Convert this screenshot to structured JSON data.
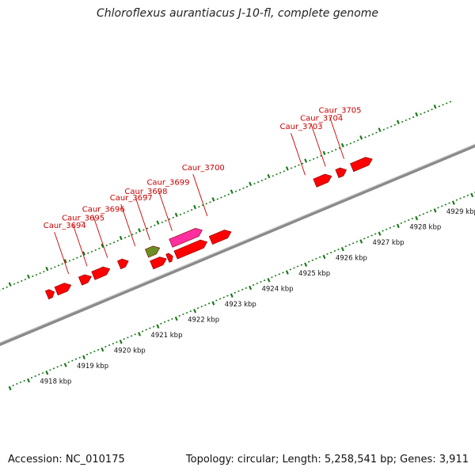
{
  "title": "Chloroflexus aurantiacus J-10-fl, complete genome",
  "footer": {
    "accession": "Accession: NC_010175",
    "summary": "Topology: circular; Length: 5,258,541 bp; Genes: 3,911"
  },
  "colors": {
    "gene": "#ff0000",
    "gene_dark": "#b00000",
    "gene_pink": "#ff2fa0",
    "gene_olive": "#6b8e23",
    "genome_line": "#8a8a8a",
    "tick": "#1a7a1a",
    "label": "#cc0000"
  },
  "genes": [
    {
      "id": "g1",
      "strand": "inner",
      "start": 4918.75,
      "end": 4918.95,
      "color": "#ff0000"
    },
    {
      "id": "g2",
      "strand": "inner",
      "start": 4919.0,
      "end": 4919.4,
      "color": "#ff0000"
    },
    {
      "id": "g3",
      "strand": "inner",
      "start": 4919.65,
      "end": 4919.95,
      "color": "#ff0000"
    },
    {
      "id": "g4",
      "strand": "inner",
      "start": 4920.0,
      "end": 4920.45,
      "color": "#ff0000"
    },
    {
      "id": "g5",
      "strand": "inner",
      "start": 4920.7,
      "end": 4920.95,
      "color": "#ff0000"
    },
    {
      "id": "g6",
      "strand": "inner",
      "start": 4921.45,
      "end": 4921.8,
      "color": "#6b8e23"
    },
    {
      "id": "g7",
      "strand": "middle",
      "start": 4921.45,
      "end": 4921.85,
      "color": "#ff0000"
    },
    {
      "id": "g8",
      "strand": "middle",
      "start": 4921.88,
      "end": 4922.02,
      "color": "#ff0000"
    },
    {
      "id": "g9",
      "strand": "inner",
      "start": 4922.1,
      "end": 4922.95,
      "color": "#ff2fa0"
    },
    {
      "id": "g10",
      "strand": "middle",
      "start": 4922.1,
      "end": 4922.95,
      "color": "#ff0000"
    },
    {
      "id": "g11",
      "strand": "middle",
      "start": 4923.05,
      "end": 4923.6,
      "color": "#ff0000"
    },
    {
      "id": "g12",
      "strand": "outer",
      "start": 4926.0,
      "end": 4926.45,
      "color": "#ff0000"
    },
    {
      "id": "g13",
      "strand": "outer",
      "start": 4926.6,
      "end": 4926.85,
      "color": "#ff0000"
    },
    {
      "id": "g14",
      "strand": "outer",
      "start": 4927.0,
      "end": 4927.55,
      "color": "#ff0000"
    }
  ],
  "gene_labels": [
    {
      "text": "Caur_3694",
      "pos": 4919.45
    },
    {
      "text": "Caur_3695",
      "pos": 4919.95
    },
    {
      "text": "Caur_3696",
      "pos": 4920.5
    },
    {
      "text": "Caur_3697",
      "pos": 4921.25
    },
    {
      "text": "Caur_3698",
      "pos": 4921.65
    },
    {
      "text": "Caur_3699",
      "pos": 4922.25
    },
    {
      "text": "Caur_3700",
      "pos": 4923.2
    },
    {
      "text": "Caur_3703",
      "pos": 4925.85
    },
    {
      "text": "Caur_3704",
      "pos": 4926.4
    },
    {
      "text": "Caur_3705",
      "pos": 4926.9
    }
  ],
  "kbp_labels": [
    {
      "text": "4918 kbp",
      "pos": 4918
    },
    {
      "text": "4919 kbp",
      "pos": 4919
    },
    {
      "text": "4920 kbp",
      "pos": 4920
    },
    {
      "text": "4921 kbp",
      "pos": 4921
    },
    {
      "text": "4922 kbp",
      "pos": 4922
    },
    {
      "text": "4923 kbp",
      "pos": 4923
    },
    {
      "text": "4924 kbp",
      "pos": 4924
    },
    {
      "text": "4925 kbp",
      "pos": 4925
    },
    {
      "text": "4926 kbp",
      "pos": 4926
    },
    {
      "text": "4927 kbp",
      "pos": 4927
    },
    {
      "text": "4928 kbp",
      "pos": 4928
    },
    {
      "text": "4929 kbp",
      "pos": 4929
    }
  ]
}
